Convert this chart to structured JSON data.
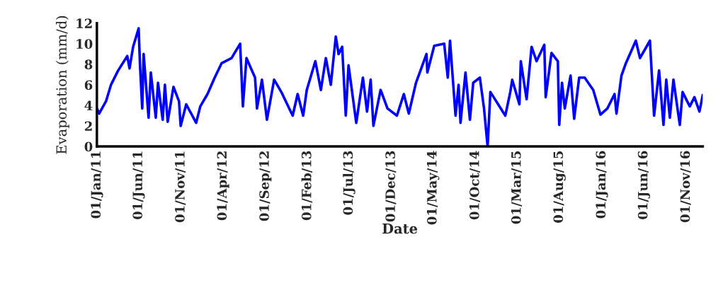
{
  "chart_data": {
    "type": "line",
    "xlabel": "Date",
    "ylabel": "Evaporation (mm/d)",
    "xlim": [
      "2011-01-01",
      "2016-12-31"
    ],
    "ylim": [
      0,
      12
    ],
    "yticks": [
      0,
      2,
      4,
      6,
      8,
      10,
      12
    ],
    "xticks": [
      {
        "value": "2011-01-01",
        "label": "01/Jan/11"
      },
      {
        "value": "2011-06-01",
        "label": "01/Jun/11"
      },
      {
        "value": "2011-11-01",
        "label": "01/Nov/11"
      },
      {
        "value": "2012-04-01",
        "label": "01/Apr/12"
      },
      {
        "value": "2012-09-01",
        "label": "01/Sep/12"
      },
      {
        "value": "2013-02-01",
        "label": "01/Feb/13"
      },
      {
        "value": "2013-07-01",
        "label": "01/Jul/13"
      },
      {
        "value": "2013-12-01",
        "label": "01/Dec/13"
      },
      {
        "value": "2014-05-01",
        "label": "01/May/14"
      },
      {
        "value": "2014-10-01",
        "label": "01/Oct/14"
      },
      {
        "value": "2015-03-01",
        "label": "01/Mar/15"
      },
      {
        "value": "2015-08-01",
        "label": "01/Aug/15"
      },
      {
        "value": "2016-01-01",
        "label": "01/Jan/16"
      },
      {
        "value": "2016-06-01",
        "label": "01/Jun/16"
      },
      {
        "value": "2016-11-01",
        "label": "01/Nov/16"
      }
    ],
    "grid": false,
    "legend": false,
    "marker": "none",
    "line_style": "solid",
    "series": [
      {
        "color": "#0000ff",
        "x": [
          "2011-01-01",
          "2011-01-09",
          "2011-02-03",
          "2011-02-21",
          "2011-03-19",
          "2011-04-21",
          "2011-04-29",
          "2011-05-12",
          "2011-06-01",
          "2011-06-06",
          "2011-06-14",
          "2011-06-19",
          "2011-07-07",
          "2011-07-15",
          "2011-08-02",
          "2011-08-10",
          "2011-08-27",
          "2011-09-04",
          "2011-09-14",
          "2011-10-05",
          "2011-10-25",
          "2011-10-31",
          "2011-11-20",
          "2011-12-26",
          "2012-01-10",
          "2012-02-05",
          "2012-03-02",
          "2012-03-27",
          "2012-05-02",
          "2012-06-02",
          "2012-06-12",
          "2012-06-25",
          "2012-07-26",
          "2012-08-02",
          "2012-08-20",
          "2012-09-07",
          "2012-10-03",
          "2012-10-29",
          "2012-12-09",
          "2012-12-27",
          "2013-01-16",
          "2013-01-29",
          "2013-03-01",
          "2013-03-21",
          "2013-04-08",
          "2013-04-26",
          "2013-05-14",
          "2013-05-24",
          "2013-06-06",
          "2013-06-19",
          "2013-06-29",
          "2013-07-27",
          "2013-08-20",
          "2013-09-04",
          "2013-09-17",
          "2013-09-27",
          "2013-10-23",
          "2013-11-17",
          "2013-12-21",
          "2014-01-15",
          "2014-02-02",
          "2014-02-28",
          "2014-04-07",
          "2014-04-10",
          "2014-05-05",
          "2014-06-10",
          "2014-06-23",
          "2014-07-01",
          "2014-07-21",
          "2014-08-01",
          "2014-08-08",
          "2014-08-26",
          "2014-09-11",
          "2014-09-23",
          "2014-10-17",
          "2014-11-01",
          "2014-11-14",
          "2014-11-24",
          "2015-01-17",
          "2015-02-04",
          "2015-02-11",
          "2015-03-09",
          "2015-03-14",
          "2015-04-04",
          "2015-04-22",
          "2015-05-10",
          "2015-06-07",
          "2015-06-12",
          "2015-07-03",
          "2015-07-26",
          "2015-07-31",
          "2015-08-10",
          "2015-08-20",
          "2015-09-10",
          "2015-09-23",
          "2015-10-11",
          "2015-10-31",
          "2015-12-01",
          "2015-12-27",
          "2016-01-21",
          "2016-02-16",
          "2016-02-23",
          "2016-03-12",
          "2016-03-28",
          "2016-05-03",
          "2016-05-18",
          "2016-06-23",
          "2016-07-08",
          "2016-07-26",
          "2016-08-11",
          "2016-08-21",
          "2016-09-03",
          "2016-09-16",
          "2016-10-09",
          "2016-10-19",
          "2016-11-14",
          "2016-12-01",
          "2016-12-19",
          "2016-12-31"
        ],
        "values": [
          3.7,
          3.2,
          4.4,
          6.0,
          7.4,
          8.8,
          7.6,
          9.7,
          11.5,
          7.9,
          3.7,
          9.0,
          2.8,
          7.2,
          2.8,
          6.2,
          2.6,
          6.0,
          2.4,
          5.8,
          4.4,
          2.0,
          4.1,
          2.3,
          3.9,
          5.1,
          6.7,
          8.1,
          8.6,
          10.0,
          3.9,
          8.6,
          6.7,
          3.7,
          6.5,
          2.6,
          6.5,
          5.3,
          3.0,
          5.1,
          3.0,
          5.5,
          8.3,
          5.5,
          8.6,
          6.0,
          10.7,
          9.0,
          9.7,
          3.0,
          7.9,
          2.3,
          6.7,
          3.4,
          6.5,
          2.0,
          5.5,
          3.7,
          3.0,
          5.1,
          3.2,
          6.2,
          9.0,
          7.2,
          9.8,
          10.0,
          6.7,
          10.3,
          3.0,
          6.0,
          2.3,
          7.2,
          2.6,
          6.2,
          6.7,
          3.7,
          0.0,
          5.3,
          3.0,
          5.3,
          6.5,
          4.1,
          8.3,
          4.6,
          9.7,
          8.3,
          9.9,
          4.8,
          9.1,
          8.3,
          2.1,
          6.2,
          3.7,
          6.9,
          2.7,
          6.7,
          6.7,
          5.5,
          3.1,
          3.7,
          5.1,
          3.2,
          6.9,
          8.1,
          10.3,
          8.6,
          10.3,
          3.0,
          7.4,
          2.1,
          6.5,
          2.8,
          6.5,
          2.1,
          5.3,
          3.9,
          4.8,
          3.4,
          5.0
        ]
      }
    ]
  }
}
